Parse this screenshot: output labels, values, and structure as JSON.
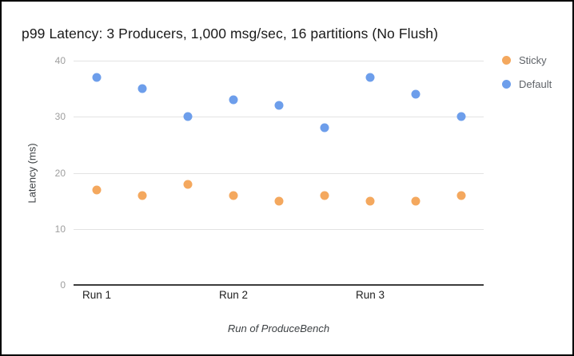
{
  "window": {
    "background_color": "#ffffff",
    "border_color": "#000000"
  },
  "chart_data": {
    "type": "scatter",
    "title": "p99 Latency: 3 Producers, 1,000 msg/sec, 16 partitions (No Flush)",
    "xlabel": "Run of ProduceBench",
    "ylabel": "Latency (ms)",
    "x": [
      1,
      2,
      3,
      4,
      5,
      6,
      7,
      8,
      9
    ],
    "x_tick_labels": [
      {
        "index": 0,
        "label": "Run 1"
      },
      {
        "index": 3,
        "label": "Run 2"
      },
      {
        "index": 6,
        "label": "Run 3"
      }
    ],
    "series": [
      {
        "name": "Sticky",
        "color": "#f4a85e",
        "values": [
          17,
          16,
          18,
          16,
          15,
          16,
          15,
          15,
          16
        ]
      },
      {
        "name": "Default",
        "color": "#6d9eeb",
        "values": [
          37,
          35,
          30,
          33,
          32,
          28,
          37,
          34,
          30
        ]
      }
    ],
    "ylim": [
      0,
      40
    ],
    "y_ticks": [
      0,
      10,
      20,
      30,
      40
    ],
    "grid": true,
    "legend_position": "top-right",
    "colors": {
      "gridline": "#e3e3e3",
      "axis_baseline": "#3c3c3c",
      "y_tick_label": "#9e9e9e",
      "x_tick_label": "#212121",
      "title_text": "#1a1a1a",
      "legend_text": "#5f6368"
    }
  }
}
